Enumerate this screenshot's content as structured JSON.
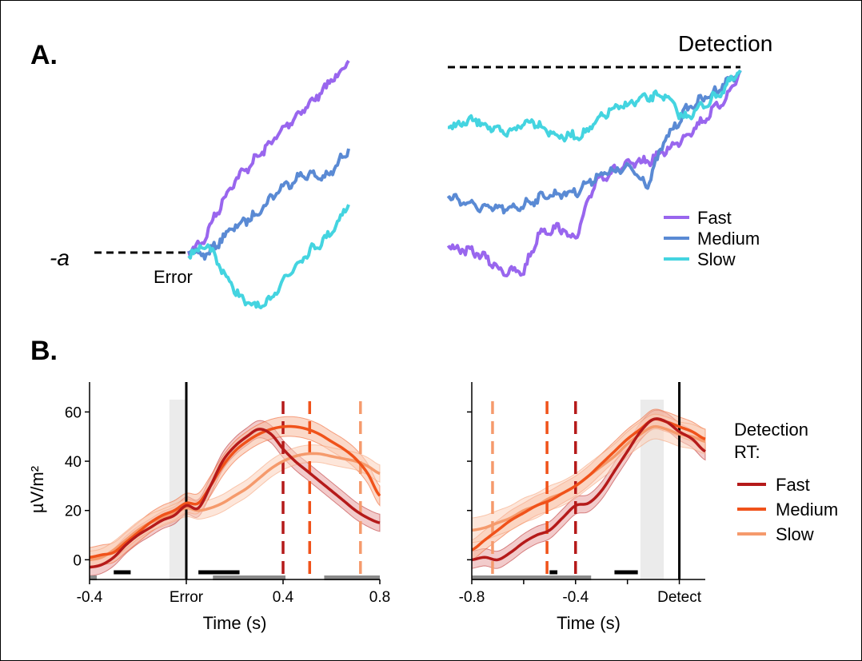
{
  "panel_labels": {
    "a": "A.",
    "b": "B."
  },
  "schematic": {
    "threshold_label": "-a",
    "error_label": "Error",
    "detection_label": "Detection",
    "legend": [
      {
        "label": "Fast",
        "color": "#9966ee"
      },
      {
        "label": "Medium",
        "color": "#5a8ad4"
      },
      {
        "label": "Slow",
        "color": "#44d4e0"
      }
    ]
  },
  "legend_b": {
    "title_line1": "Detection",
    "title_line2": "RT:",
    "items": [
      {
        "label": "Fast",
        "color": "#b51a1a"
      },
      {
        "label": "Medium",
        "color": "#f0521a"
      },
      {
        "label": "Slow",
        "color": "#f59a6c"
      }
    ]
  },
  "chart_data": [
    {
      "type": "line",
      "panel": "B-left",
      "xlabel": "Time (s)",
      "ylabel": "µV/m²",
      "xlim": [
        -0.4,
        0.8
      ],
      "ylim": [
        -8,
        65
      ],
      "x_ticks": [
        {
          "value": -0.4,
          "label": "-0.4"
        },
        {
          "value": 0,
          "label": "Error"
        },
        {
          "value": 0.4,
          "label": "0.4"
        },
        {
          "value": 0.8,
          "label": "0.8"
        }
      ],
      "y_ticks": [
        0,
        20,
        40,
        60
      ],
      "reference_line_x": 0,
      "shaded_region": [
        -0.07,
        0
      ],
      "series": [
        {
          "name": "Fast",
          "x": [
            -0.4,
            -0.35,
            -0.3,
            -0.25,
            -0.2,
            -0.15,
            -0.1,
            -0.05,
            0,
            0.05,
            0.1,
            0.15,
            0.2,
            0.25,
            0.3,
            0.35,
            0.4,
            0.45,
            0.5,
            0.55,
            0.6,
            0.65,
            0.7,
            0.75,
            0.8
          ],
          "values": [
            -3,
            -2,
            1,
            6,
            10,
            13,
            16,
            18,
            22,
            21,
            30,
            40,
            46,
            50,
            53,
            51,
            45,
            40,
            36,
            32,
            28,
            24,
            20,
            17,
            15
          ]
        },
        {
          "name": "Medium",
          "x": [
            -0.4,
            -0.35,
            -0.3,
            -0.25,
            -0.2,
            -0.15,
            -0.1,
            -0.05,
            0,
            0.05,
            0.1,
            0.15,
            0.2,
            0.25,
            0.3,
            0.35,
            0.4,
            0.45,
            0.5,
            0.55,
            0.6,
            0.65,
            0.7,
            0.75,
            0.8
          ],
          "values": [
            1,
            2,
            3,
            7,
            11,
            15,
            18,
            20,
            23,
            23,
            30,
            38,
            44,
            48,
            51,
            53,
            54,
            54,
            53,
            51,
            48,
            45,
            41,
            35,
            26
          ]
        },
        {
          "name": "Slow",
          "x": [
            -0.4,
            -0.35,
            -0.3,
            -0.25,
            -0.2,
            -0.15,
            -0.1,
            -0.05,
            0,
            0.05,
            0.1,
            0.15,
            0.2,
            0.25,
            0.3,
            0.35,
            0.4,
            0.45,
            0.5,
            0.55,
            0.6,
            0.65,
            0.7,
            0.75,
            0.8
          ],
          "values": [
            0,
            1,
            4,
            8,
            12,
            15,
            17,
            19,
            21,
            20,
            21,
            23,
            26,
            29,
            33,
            37,
            40,
            42,
            43,
            43,
            42,
            41,
            40,
            38,
            35
          ]
        }
      ],
      "band_halfwidth": [
        3.5,
        4,
        3.5
      ],
      "dashed_lines": [
        {
          "x": 0.4,
          "series": "Fast"
        },
        {
          "x": 0.51,
          "series": "Medium"
        },
        {
          "x": 0.72,
          "series": "Slow"
        }
      ],
      "significance_bars": [
        {
          "x0": -0.3,
          "x1": -0.23,
          "color": "black"
        },
        {
          "x0": 0.05,
          "x1": 0.22,
          "color": "black"
        },
        {
          "x0": -0.4,
          "x1": -0.37,
          "color": "gray"
        },
        {
          "x0": 0.11,
          "x1": 0.41,
          "color": "gray"
        },
        {
          "x0": 0.57,
          "x1": 0.8,
          "color": "gray"
        }
      ]
    },
    {
      "type": "line",
      "panel": "B-right",
      "xlabel": "Time (s)",
      "ylabel": "",
      "xlim": [
        -0.8,
        0.1
      ],
      "ylim": [
        -8,
        65
      ],
      "x_ticks": [
        {
          "value": -0.8,
          "label": "-0.8"
        },
        {
          "value": -0.6,
          "label": ""
        },
        {
          "value": -0.4,
          "label": "-0.4"
        },
        {
          "value": -0.2,
          "label": ""
        },
        {
          "value": 0,
          "label": "Detect"
        }
      ],
      "y_ticks": [
        0,
        20,
        40,
        60
      ],
      "reference_line_x": 0,
      "shaded_region": [
        -0.15,
        -0.06
      ],
      "series": [
        {
          "name": "Fast",
          "x": [
            -0.8,
            -0.75,
            -0.7,
            -0.65,
            -0.6,
            -0.55,
            -0.5,
            -0.45,
            -0.4,
            -0.35,
            -0.3,
            -0.25,
            -0.2,
            -0.15,
            -0.1,
            -0.05,
            0,
            0.05,
            0.1
          ],
          "values": [
            0,
            1,
            0,
            3,
            7,
            10,
            12,
            17,
            22,
            23,
            28,
            36,
            44,
            52,
            57,
            56,
            52,
            49,
            44
          ]
        },
        {
          "name": "Medium",
          "x": [
            -0.8,
            -0.75,
            -0.7,
            -0.65,
            -0.6,
            -0.55,
            -0.5,
            -0.45,
            -0.4,
            -0.35,
            -0.3,
            -0.25,
            -0.2,
            -0.15,
            -0.1,
            -0.05,
            0,
            0.05,
            0.1
          ],
          "values": [
            4,
            8,
            12,
            16,
            19,
            22,
            24,
            27,
            30,
            34,
            39,
            44,
            49,
            53,
            57,
            56,
            54,
            52,
            49
          ]
        },
        {
          "name": "Slow",
          "x": [
            -0.8,
            -0.75,
            -0.7,
            -0.65,
            -0.6,
            -0.55,
            -0.5,
            -0.45,
            -0.4,
            -0.35,
            -0.3,
            -0.25,
            -0.2,
            -0.15,
            -0.1,
            -0.05,
            0,
            0.05,
            0.1
          ],
          "values": [
            12,
            13,
            15,
            17,
            20,
            22,
            25,
            27,
            30,
            34,
            38,
            42,
            47,
            51,
            54,
            53,
            51,
            50,
            48
          ]
        }
      ],
      "band_halfwidth": [
        3.5,
        4,
        5
      ],
      "dashed_lines": [
        {
          "x": -0.4,
          "series": "Fast"
        },
        {
          "x": -0.51,
          "series": "Medium"
        },
        {
          "x": -0.72,
          "series": "Slow"
        }
      ],
      "significance_bars": [
        {
          "x0": -0.5,
          "x1": -0.47,
          "color": "black"
        },
        {
          "x0": -0.25,
          "x1": -0.16,
          "color": "black"
        },
        {
          "x0": -0.8,
          "x1": -0.34,
          "color": "gray"
        }
      ]
    }
  ]
}
